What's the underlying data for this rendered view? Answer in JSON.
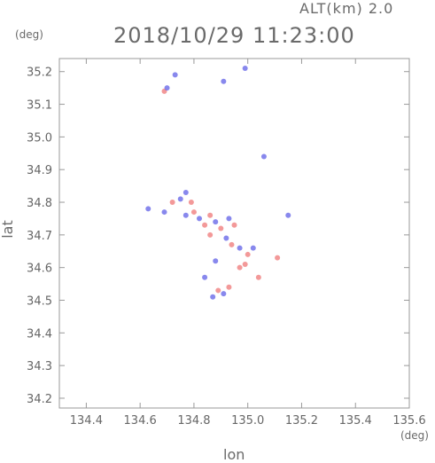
{
  "header": {
    "altitude_label": "ALT(km) 2.0",
    "datetime": "2018/10/29 11:23:00"
  },
  "chart_data": {
    "type": "scatter",
    "title": "2018/10/29 11:23:00",
    "subtitle": "ALT(km) 2.0",
    "xlabel": "lon",
    "ylabel": "lat",
    "x_unit": "(deg)",
    "y_unit": "(deg)",
    "xlim": [
      134.3,
      135.6
    ],
    "ylim": [
      34.17,
      35.24
    ],
    "x_ticks": [
      "134.4",
      "134.6",
      "134.8",
      "135.0",
      "135.2",
      "135.4",
      "135.6"
    ],
    "x_tick_values": [
      134.4,
      134.6,
      134.8,
      135.0,
      135.2,
      135.4,
      135.6
    ],
    "y_ticks": [
      "34.2",
      "34.3",
      "34.4",
      "34.5",
      "34.6",
      "34.7",
      "34.8",
      "34.9",
      "35.0",
      "35.1",
      "35.2"
    ],
    "y_tick_values": [
      34.2,
      34.3,
      34.4,
      34.5,
      34.6,
      34.7,
      34.8,
      34.9,
      35.0,
      35.1,
      35.2
    ],
    "grid": false,
    "colors": {
      "positive": "#f08080",
      "negative": "#6a6ae8",
      "frame": "#999999"
    },
    "series": [
      {
        "values": [
          {
            "lon": 134.69,
            "lat": 35.14,
            "v": 1
          },
          {
            "lon": 134.7,
            "lat": 35.15,
            "v": -1
          },
          {
            "lon": 134.73,
            "lat": 35.19,
            "v": -1
          },
          {
            "lon": 134.91,
            "lat": 35.17,
            "v": -1
          },
          {
            "lon": 134.99,
            "lat": 35.21,
            "v": -1
          },
          {
            "lon": 135.06,
            "lat": 34.94,
            "v": -1
          },
          {
            "lon": 134.63,
            "lat": 34.78,
            "v": -1
          },
          {
            "lon": 134.69,
            "lat": 34.77,
            "v": -1
          },
          {
            "lon": 134.72,
            "lat": 34.8,
            "v": 1
          },
          {
            "lon": 134.75,
            "lat": 34.81,
            "v": -1
          },
          {
            "lon": 134.77,
            "lat": 34.83,
            "v": -1
          },
          {
            "lon": 134.79,
            "lat": 34.8,
            "v": 1
          },
          {
            "lon": 134.8,
            "lat": 34.77,
            "v": 1
          },
          {
            "lon": 134.82,
            "lat": 34.75,
            "v": -1
          },
          {
            "lon": 134.84,
            "lat": 34.73,
            "v": 1
          },
          {
            "lon": 134.86,
            "lat": 34.76,
            "v": 1
          },
          {
            "lon": 134.88,
            "lat": 34.74,
            "v": -1
          },
          {
            "lon": 134.9,
            "lat": 34.72,
            "v": 1
          },
          {
            "lon": 134.93,
            "lat": 34.75,
            "v": -1
          },
          {
            "lon": 134.95,
            "lat": 34.73,
            "v": 1
          },
          {
            "lon": 134.92,
            "lat": 34.69,
            "v": -1
          },
          {
            "lon": 134.94,
            "lat": 34.67,
            "v": 1
          },
          {
            "lon": 134.97,
            "lat": 34.66,
            "v": -1
          },
          {
            "lon": 135.0,
            "lat": 34.64,
            "v": 1
          },
          {
            "lon": 135.02,
            "lat": 34.66,
            "v": -1
          },
          {
            "lon": 134.99,
            "lat": 34.61,
            "v": 1
          },
          {
            "lon": 134.97,
            "lat": 34.6,
            "v": 1
          },
          {
            "lon": 135.04,
            "lat": 34.57,
            "v": 1
          },
          {
            "lon": 135.11,
            "lat": 34.63,
            "v": 1
          },
          {
            "lon": 135.15,
            "lat": 34.76,
            "v": -1
          },
          {
            "lon": 134.88,
            "lat": 34.62,
            "v": -1
          },
          {
            "lon": 134.84,
            "lat": 34.57,
            "v": -1
          },
          {
            "lon": 134.89,
            "lat": 34.53,
            "v": 1
          },
          {
            "lon": 134.91,
            "lat": 34.52,
            "v": -1
          },
          {
            "lon": 134.87,
            "lat": 34.51,
            "v": -1
          },
          {
            "lon": 134.93,
            "lat": 34.54,
            "v": 1
          },
          {
            "lon": 134.86,
            "lat": 34.7,
            "v": 1
          },
          {
            "lon": 134.77,
            "lat": 34.76,
            "v": -1
          }
        ]
      }
    ]
  }
}
